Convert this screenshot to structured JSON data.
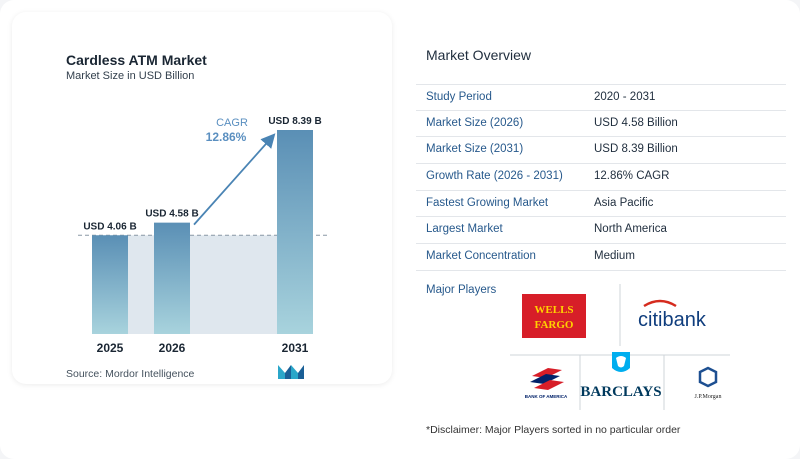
{
  "chart_card": {
    "title": "Cardless ATM  Market",
    "subtitle": "Market Size in USD Billion",
    "source": "Source:  Mordor Intelligence"
  },
  "chart_data": {
    "type": "bar",
    "categories": [
      "2025",
      "2026",
      "2031"
    ],
    "values": [
      4.06,
      4.58,
      8.39
    ],
    "value_labels": [
      "USD 4.06 B",
      "USD 4.58 B",
      "USD 8.39 B"
    ],
    "title": "Cardless ATM  Market",
    "subtitle": "Market Size in USD Billion",
    "ylim": [
      0,
      8.39
    ],
    "grid": false,
    "cagr_label": "CAGR",
    "cagr_value": "12.86%",
    "colors": {
      "bar_top": "#5a8fb5",
      "bar_bottom": "#a8d3dd",
      "band": "#dfe7ee",
      "arrow": "#4a84b4",
      "cagr_text": "#5a8fc0"
    }
  },
  "overview": {
    "title": "Market Overview",
    "rows": [
      {
        "label": "Study Period",
        "value": "2020 - 2031"
      },
      {
        "label": "Market Size (2026)",
        "value": "USD 4.58 Billion"
      },
      {
        "label": "Market Size (2031)",
        "value": "USD 8.39 Billion"
      },
      {
        "label": "Growth Rate (2026 - 2031)",
        "value": "12.86% CAGR"
      },
      {
        "label": "Fastest Growing Market",
        "value": "Asia Pacific"
      },
      {
        "label": "Largest Market",
        "value": "North America"
      },
      {
        "label": "Market Concentration",
        "value": "Medium"
      }
    ],
    "players_label": "Major Players",
    "players": {
      "wells_fargo": "WELLS FARGO",
      "citibank": "citibank",
      "bank_of_america": "BANK OF AMERICA",
      "barclays": "BARCLAYS",
      "jpmorgan": "J.P.Morgan"
    },
    "disclaimer": "*Disclaimer: Major Players sorted in no particular order"
  }
}
